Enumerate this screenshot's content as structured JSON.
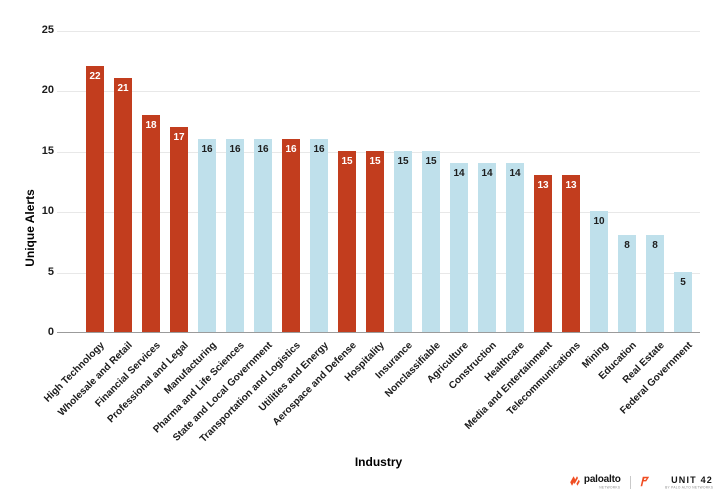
{
  "colors": {
    "red": "#c23d1e",
    "blue": "#bfe0eb",
    "grid": "#e8e8e8",
    "axis_line": "#9b9b9b",
    "value_label_on_red": "#ffffff",
    "value_label_on_blue": "#1d1d1d",
    "brand_orange": "#f04e23"
  },
  "y_axis": {
    "title": "Unique Alerts",
    "ticks": [
      0,
      5,
      10,
      15,
      20,
      25
    ]
  },
  "x_axis": {
    "title": "Industry"
  },
  "footer": {
    "paloalto_text": "paloalto",
    "paloalto_sub": "NETWORKS",
    "unit42_text": "UNIT 42",
    "unit42_sub": "BY PALO ALTO NETWORKS"
  },
  "chart_data": {
    "type": "bar",
    "title": "",
    "xlabel": "Industry",
    "ylabel": "Unique Alerts",
    "ylim": [
      0,
      25
    ],
    "grid": true,
    "legend": "none",
    "categories": [
      "High Technology",
      "Wholesale and Retail",
      "Financial Services",
      "Professional and Legal",
      "Manufacturing",
      "Pharma and Life Sciences",
      "State and Local Government",
      "Transportation and Logistics",
      "Utilities and Energy",
      "Aerospace and Defense",
      "Hospitality",
      "Insurance",
      "Nonclassifiable",
      "Agriculture",
      "Construction",
      "Healthcare",
      "Media and Entertainment",
      "Telecommunications",
      "Mining",
      "Education",
      "Real Estate",
      "Federal Government"
    ],
    "values": [
      22,
      21,
      18,
      17,
      16,
      16,
      16,
      16,
      16,
      15,
      15,
      15,
      15,
      14,
      14,
      14,
      13,
      13,
      10,
      8,
      8,
      5
    ],
    "point_colors": [
      "red",
      "red",
      "red",
      "red",
      "blue",
      "blue",
      "blue",
      "red",
      "blue",
      "red",
      "red",
      "blue",
      "blue",
      "blue",
      "blue",
      "blue",
      "red",
      "red",
      "blue",
      "blue",
      "blue",
      "blue"
    ]
  }
}
